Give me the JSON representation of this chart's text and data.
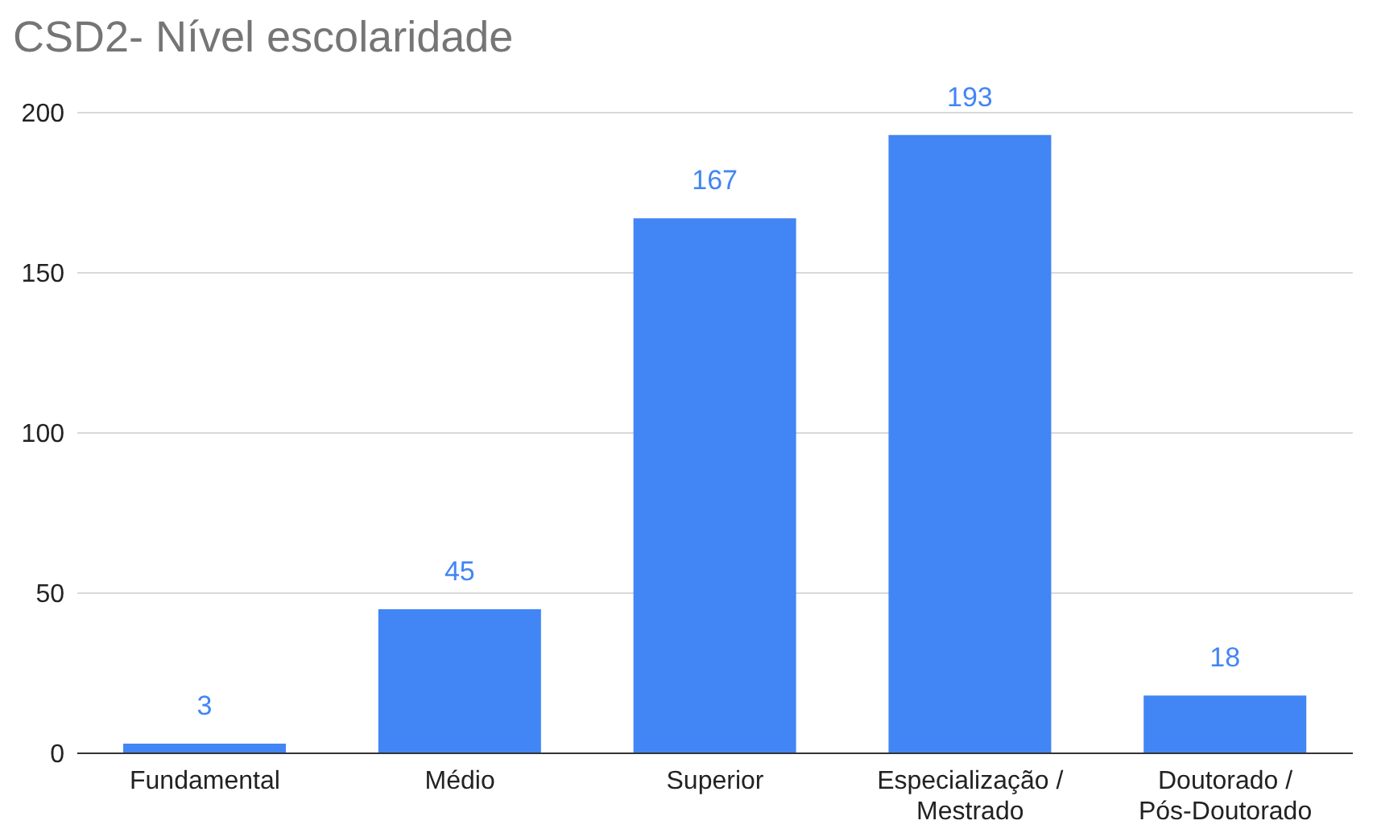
{
  "chart_data": {
    "type": "bar",
    "title": "CSD2- Nível escolaridade",
    "categories": [
      "Fundamental",
      "Médio",
      "Superior",
      "Especialização / Mestrado",
      "Doutorado / Pós-Doutorado"
    ],
    "values": [
      3,
      45,
      167,
      193,
      18
    ],
    "color": "#4285f4",
    "ylim": [
      0,
      200
    ],
    "yticks": [
      0,
      50,
      100,
      150,
      200
    ],
    "grid": "y",
    "data_labels": true
  }
}
